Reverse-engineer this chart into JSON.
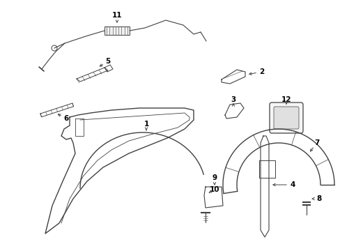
{
  "bg_color": "#ffffff",
  "line_color": "#404040",
  "label_color": "#000000",
  "figsize": [
    4.89,
    3.6
  ],
  "dpi": 100
}
